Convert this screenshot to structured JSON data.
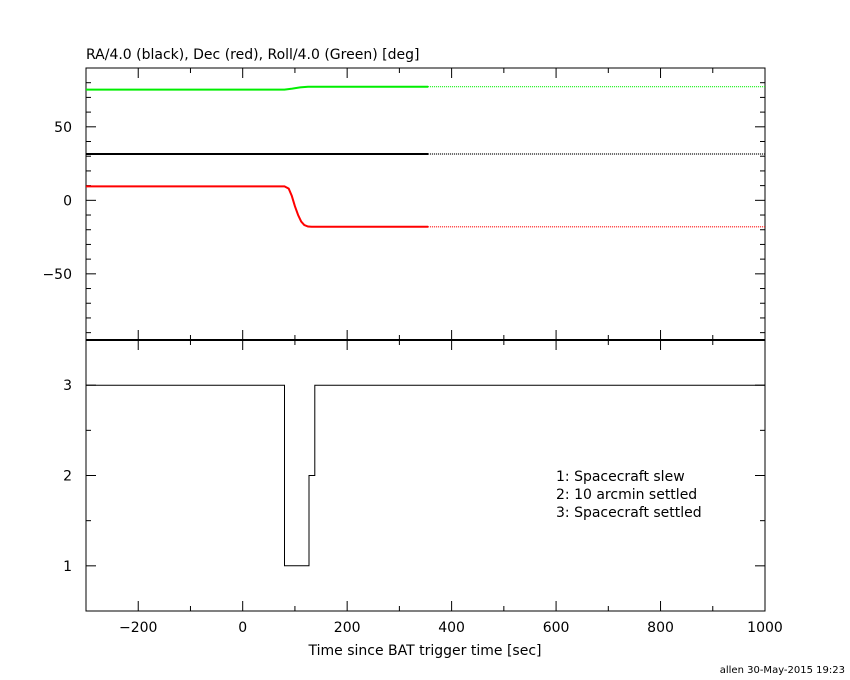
{
  "chart_data": [
    {
      "type": "line",
      "title": "RA/4.0 (black), Dec (red), Roll/4.0 (Green) [deg]",
      "xlim": [
        -300,
        1000
      ],
      "ylim": [
        -95,
        90
      ],
      "x_ticks": [
        -200,
        0,
        200,
        400,
        600,
        800,
        1000
      ],
      "y_ticks": [
        -50,
        0,
        50
      ],
      "grid": false,
      "series": [
        {
          "name": "RA/4.0",
          "color": "#000000",
          "x": [
            -300,
            355
          ],
          "y": [
            31.5,
            31.5
          ],
          "dotted_x": [
            355,
            1000
          ],
          "dotted_y": [
            31.5,
            31.5
          ]
        },
        {
          "name": "Dec",
          "color": "#ff0000",
          "x": [
            -300,
            80,
            88,
            94,
            100,
            106,
            112,
            118,
            125,
            132,
            355
          ],
          "y": [
            9.5,
            9.5,
            8.0,
            3.0,
            -4.0,
            -10.0,
            -14.5,
            -16.8,
            -17.8,
            -18.0,
            -18.0
          ],
          "dotted_x": [
            355,
            1000
          ],
          "dotted_y": [
            -18.0,
            -18.0
          ]
        },
        {
          "name": "Roll/4.0",
          "color": "#00ee00",
          "x": [
            -300,
            80,
            95,
            110,
            125,
            355
          ],
          "y": [
            75.3,
            75.3,
            76.0,
            76.8,
            77.3,
            77.3
          ],
          "dotted_x": [
            355,
            1000
          ],
          "dotted_y": [
            77.3,
            77.3
          ]
        }
      ]
    },
    {
      "type": "line",
      "xlabel": "Time since BAT trigger time [sec]",
      "xlim": [
        -300,
        1000
      ],
      "ylim": [
        0.5,
        3.5
      ],
      "x_ticks": [
        -200,
        0,
        200,
        400,
        600,
        800,
        1000
      ],
      "y_ticks": [
        1,
        2,
        3
      ],
      "grid": false,
      "series": [
        {
          "color": "#000000",
          "step": true,
          "x": [
            -300,
            80,
            80,
            127,
            127,
            138,
            138,
            1000
          ],
          "y": [
            3,
            3,
            1,
            1,
            2,
            2,
            3,
            3
          ]
        }
      ],
      "annotations": [
        "1: Spacecraft slew",
        "2: 10 arcmin settled",
        "3: Spacecraft settled"
      ]
    }
  ],
  "footer": "allen 30-May-2015 19:23"
}
